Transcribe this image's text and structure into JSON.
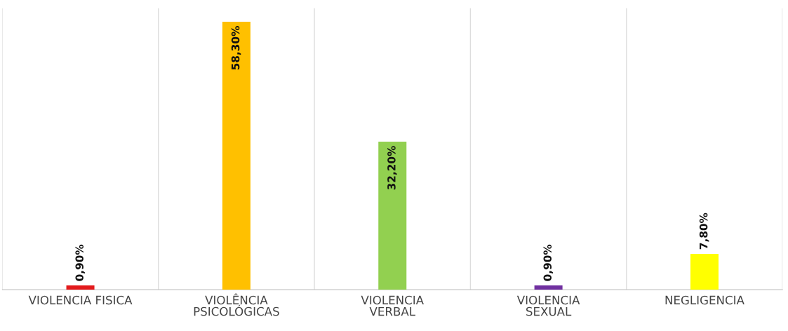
{
  "chart_data": {
    "type": "bar",
    "categories": [
      "VIOLENCIA FISICA",
      "VIOLÊNCIA\nPSICOLÓGICAS",
      "VIOLENCIA\nVERBAL",
      "VIOLENCIA\nSEXUAL",
      "NEGLIGENCIA"
    ],
    "values": [
      0.9,
      58.3,
      32.2,
      0.9,
      7.8
    ],
    "colors": [
      "#e31a1c",
      "#ffc000",
      "#92d050",
      "#7030a0",
      "#ffff00"
    ],
    "value_labels": [
      "0,90%",
      "58,30%",
      "32,20%",
      "0,90%",
      "7,80%"
    ],
    "grid": "x",
    "legend": false
  }
}
